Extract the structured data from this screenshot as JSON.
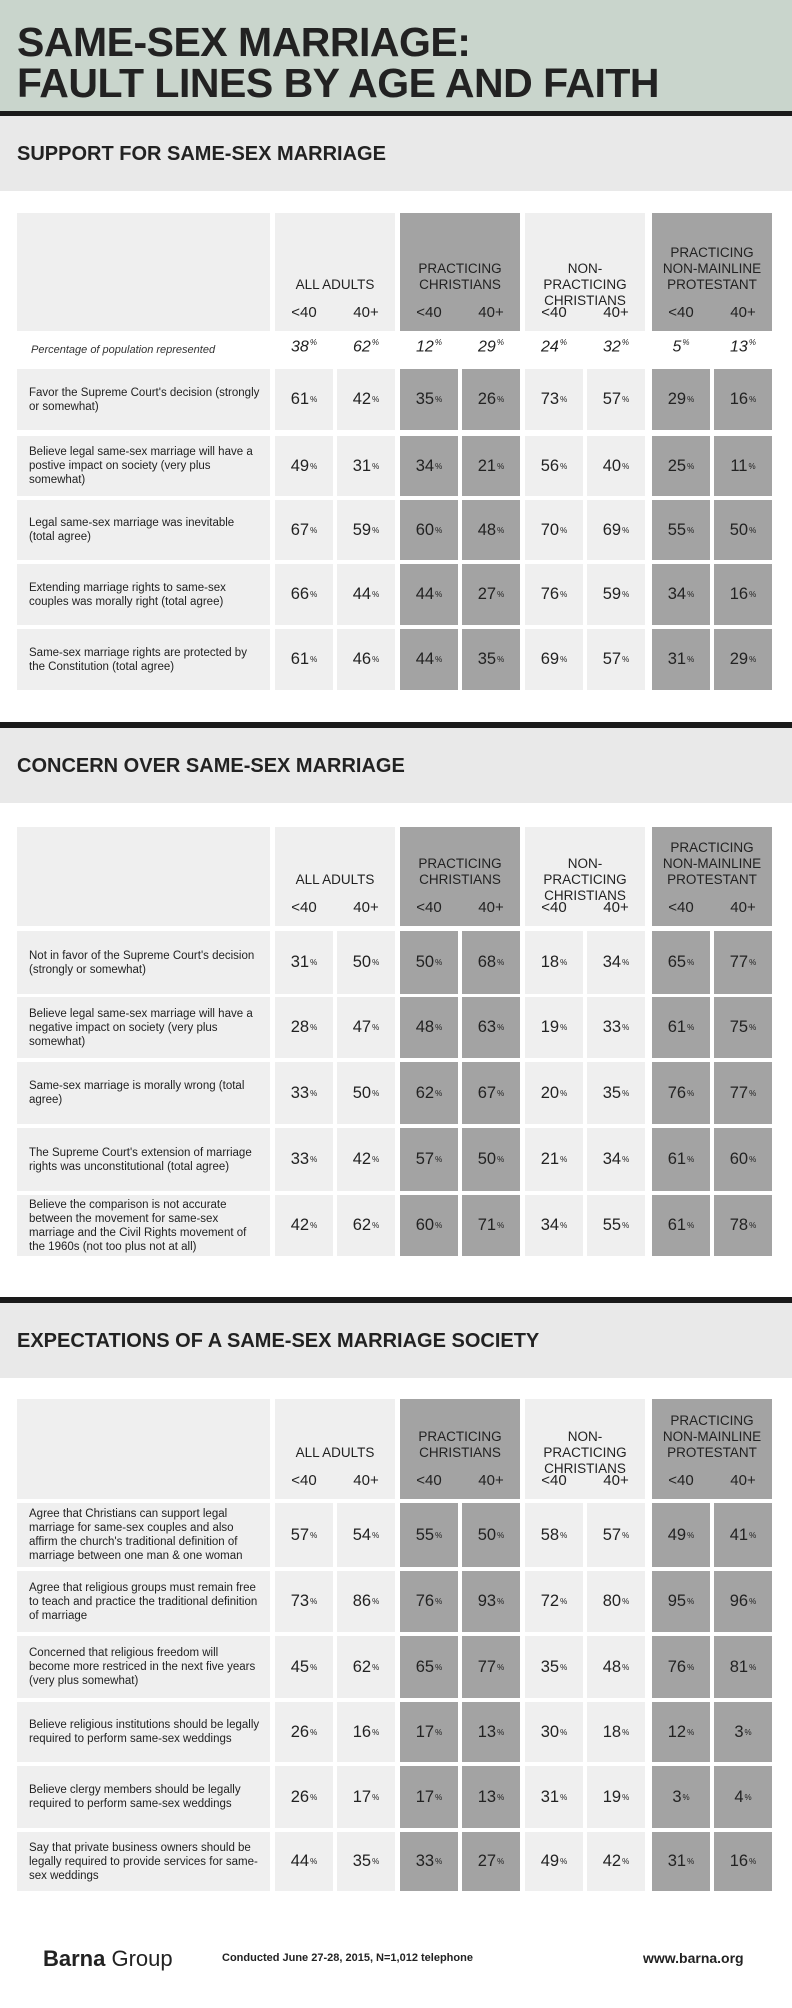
{
  "title_line1": "SAME-SEX MARRIAGE:",
  "title_line2": "FAULT LINES BY AGE AND FAITH",
  "groups": [
    {
      "label": "ALL ADULTS",
      "dark": false
    },
    {
      "label": "PRACTICING CHRISTIANS",
      "dark": true
    },
    {
      "label": "NON-PRACTICING CHRISTIANS",
      "dark": false
    },
    {
      "label": "PRACTICING NON-MAINLINE PROTESTANT",
      "dark": true
    }
  ],
  "age_labels": [
    "<40",
    "40+"
  ],
  "pct_symbol": "%",
  "population_label": "Percentage of population represented",
  "population": [
    "38",
    "62",
    "12",
    "29",
    "24",
    "32",
    "5",
    "13"
  ],
  "colors": {
    "light_cell": "#efefef",
    "dark_cell": "#a3a3a3",
    "header_band": "#c9d5cc",
    "section_band": "#e9e9e9"
  },
  "chart_data": [
    {
      "type": "table",
      "title": "SUPPORT FOR SAME-SEX MARRIAGE",
      "columns": [
        "ALL ADULTS <40",
        "ALL ADULTS 40+",
        "PRACTICING CHRISTIANS <40",
        "PRACTICING CHRISTIANS 40+",
        "NON-PRACTICING CHRISTIANS <40",
        "NON-PRACTICING CHRISTIANS 40+",
        "PRACTICING NON-MAINLINE PROTESTANT <40",
        "PRACTICING NON-MAINLINE PROTESTANT 40+"
      ],
      "rows": [
        {
          "label": "Favor the Supreme Court's decision (strongly or somewhat)",
          "values": [
            61,
            42,
            35,
            26,
            73,
            57,
            29,
            16
          ]
        },
        {
          "label": "Believe legal same-sex marriage will have a postive impact on society (very plus somewhat)",
          "values": [
            49,
            31,
            34,
            21,
            56,
            40,
            25,
            11
          ]
        },
        {
          "label": "Legal same-sex marriage was inevitable (total agree)",
          "values": [
            67,
            59,
            60,
            48,
            70,
            69,
            55,
            50
          ]
        },
        {
          "label": "Extending marriage rights to same-sex couples was morally right (total agree)",
          "values": [
            66,
            44,
            44,
            27,
            76,
            59,
            34,
            16
          ]
        },
        {
          "label": "Same-sex marriage rights are protected by the Constitution (total agree)",
          "values": [
            61,
            46,
            44,
            35,
            69,
            57,
            31,
            29
          ]
        }
      ]
    },
    {
      "type": "table",
      "title": "CONCERN OVER SAME-SEX MARRIAGE",
      "columns": [
        "ALL ADULTS <40",
        "ALL ADULTS 40+",
        "PRACTICING CHRISTIANS <40",
        "PRACTICING CHRISTIANS 40+",
        "NON-PRACTICING CHRISTIANS <40",
        "NON-PRACTICING CHRISTIANS 40+",
        "PRACTICING NON-MAINLINE PROTESTANT <40",
        "PRACTICING NON-MAINLINE PROTESTANT 40+"
      ],
      "rows": [
        {
          "label": "Not in favor of the Supreme Court's decision (strongly or somewhat)",
          "values": [
            31,
            50,
            50,
            68,
            18,
            34,
            65,
            77
          ]
        },
        {
          "label": "Believe legal same-sex marriage will have a negative impact on society (very plus somewhat)",
          "values": [
            28,
            47,
            48,
            63,
            19,
            33,
            61,
            75
          ]
        },
        {
          "label": "Same-sex marriage is morally wrong (total agree)",
          "values": [
            33,
            50,
            62,
            67,
            20,
            35,
            76,
            77
          ]
        },
        {
          "label": "The Supreme Court's extension of marriage rights was unconstitutional (total agree)",
          "values": [
            33,
            42,
            57,
            50,
            21,
            34,
            61,
            60
          ]
        },
        {
          "label": "Believe the comparison is not accurate between the movement for same-sex marriage and the Civil Rights movement of the 1960s (not too plus not at all)",
          "values": [
            42,
            62,
            60,
            71,
            34,
            55,
            61,
            78
          ]
        }
      ]
    },
    {
      "type": "table",
      "title": "EXPECTATIONS OF A SAME-SEX MARRIAGE SOCIETY",
      "columns": [
        "ALL ADULTS <40",
        "ALL ADULTS 40+",
        "PRACTICING CHRISTIANS <40",
        "PRACTICING CHRISTIANS 40+",
        "NON-PRACTICING CHRISTIANS <40",
        "NON-PRACTICING CHRISTIANS 40+",
        "PRACTICING NON-MAINLINE PROTESTANT <40",
        "PRACTICING NON-MAINLINE PROTESTANT 40+"
      ],
      "rows": [
        {
          "label": "Agree that Christians can support legal marriage for same-sex couples and also affirm the church's traditional definition of marriage between one man & one woman",
          "values": [
            57,
            54,
            55,
            50,
            58,
            57,
            49,
            41
          ]
        },
        {
          "label": "Agree that religious groups must remain free to teach and practice the traditional definition of marriage",
          "values": [
            73,
            86,
            76,
            93,
            72,
            80,
            95,
            96
          ]
        },
        {
          "label": "Concerned that religious freedom will become more restriced in the  next five years (very plus somewhat)",
          "values": [
            45,
            62,
            65,
            77,
            35,
            48,
            76,
            81
          ]
        },
        {
          "label": "Believe religious institutions should be legally required to perform same-sex weddings",
          "values": [
            26,
            16,
            17,
            13,
            30,
            18,
            12,
            3
          ]
        },
        {
          "label": "Believe clergy members should be legally required to perform same-sex weddings",
          "values": [
            26,
            17,
            17,
            13,
            31,
            19,
            3,
            4
          ]
        },
        {
          "label": "Say that private business owners should be legally required to provide services for same-sex weddings",
          "values": [
            44,
            35,
            33,
            27,
            49,
            42,
            31,
            16
          ]
        }
      ]
    }
  ],
  "footer": {
    "logo_bold": "Barna",
    "logo_rest": " Group",
    "note": "Conducted June 27-28, 2015, N=1,012 telephone",
    "url": "www.barna.org"
  }
}
